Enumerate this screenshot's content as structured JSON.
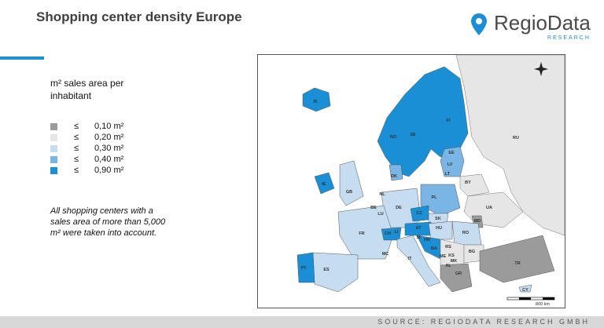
{
  "header": {
    "title": "Shopping center density Europe"
  },
  "logo": {
    "name": "RegioData",
    "tagline": "RESEARCH"
  },
  "legend": {
    "title": "m² sales area per inhabitant",
    "items": [
      {
        "symbol": "≤",
        "label": "0,10 m²",
        "color": "#9b9b9b"
      },
      {
        "symbol": "≤",
        "label": "0,20 m²",
        "color": "#e6e6e6"
      },
      {
        "symbol": "≤",
        "label": "0,30 m²",
        "color": "#c6dcf1"
      },
      {
        "symbol": "≤",
        "label": "0,40 m²",
        "color": "#79b6e5"
      },
      {
        "symbol": "≤",
        "label": "0,90 m²",
        "color": "#1b8fd5"
      }
    ]
  },
  "note": "All shopping centers with a sales area of more than 5,000 m² were taken into account.",
  "map": {
    "labels": [
      "IS",
      "NO",
      "SE",
      "FI",
      "RU",
      "EE",
      "LV",
      "LT",
      "DK",
      "IE",
      "GB",
      "NL",
      "BE",
      "LU",
      "DE",
      "PL",
      "BY",
      "UA",
      "CZ",
      "SK",
      "MD",
      "FR",
      "CH",
      "LI",
      "AT",
      "HU",
      "RO",
      "SI",
      "HR",
      "BA",
      "RS",
      "MC",
      "IT",
      "ME",
      "KS",
      "MK",
      "BG",
      "AL",
      "GR",
      "TR",
      "PT",
      "ES",
      "CY"
    ],
    "scale": "800 km"
  },
  "footer": "SOURCE: REGIODATA RESEARCH GMBH"
}
